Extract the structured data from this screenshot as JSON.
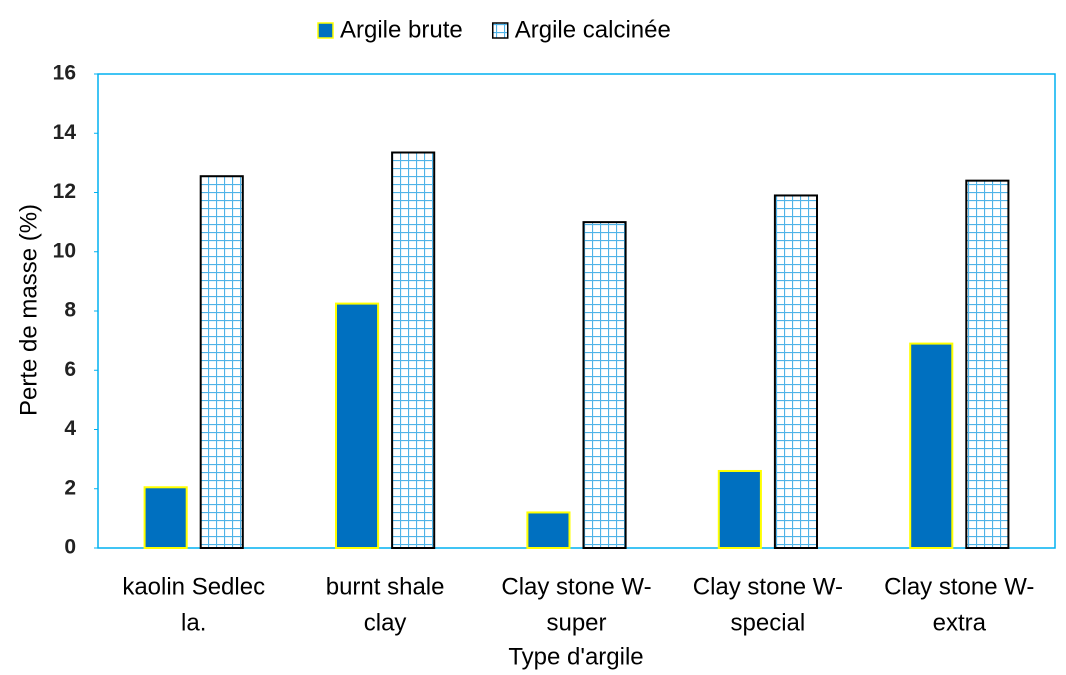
{
  "chart_data": {
    "type": "bar",
    "x_label": "Type d'argile",
    "y_label": "Perte de masse (%)",
    "categories": [
      [
        "kaolin Sedlec",
        "la."
      ],
      [
        "burnt shale",
        "clay"
      ],
      [
        "Clay stone W-",
        "super"
      ],
      [
        "Clay stone W-",
        "special"
      ],
      [
        "Clay stone W-",
        "extra"
      ]
    ],
    "series": [
      {
        "name": "Argile brute",
        "color": "#0070c0",
        "edge": "#ffff00",
        "values": [
          2.05,
          8.25,
          1.2,
          2.6,
          6.9
        ]
      },
      {
        "name": "Argile calcinée",
        "color": "#4fb3e8",
        "edge": "#000000",
        "pattern": "grid",
        "values": [
          12.55,
          13.35,
          11.0,
          11.9,
          12.4
        ]
      }
    ],
    "ylim": [
      0,
      16
    ],
    "yticks": [
      0,
      2,
      4,
      6,
      8,
      10,
      12,
      14,
      16
    ],
    "legend": "top"
  }
}
